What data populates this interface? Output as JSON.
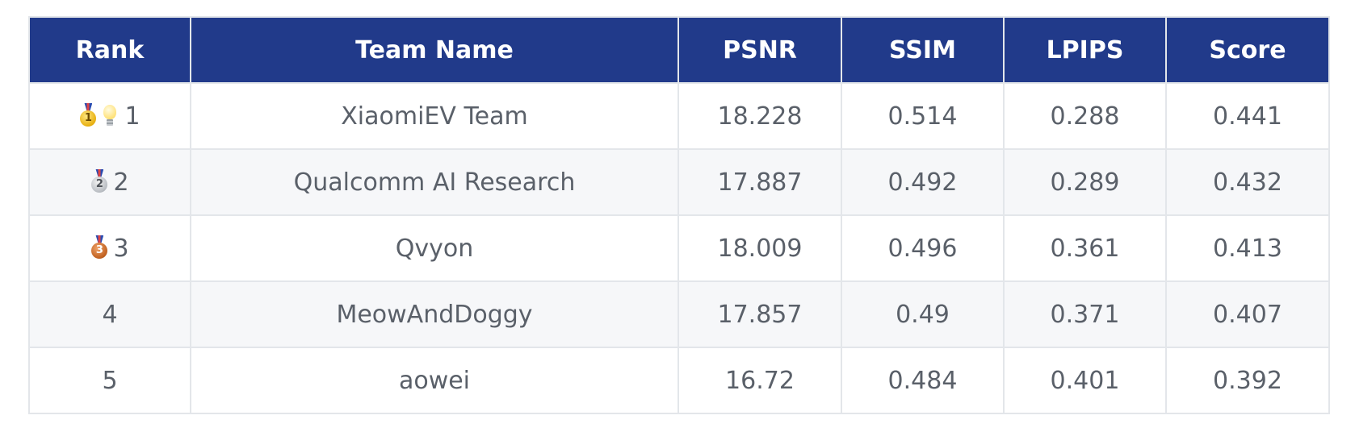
{
  "table": {
    "headers": [
      "Rank",
      "Team Name",
      "PSNR",
      "SSIM",
      "LPIPS",
      "Score"
    ],
    "rows": [
      {
        "medal": "1",
        "rank": "1",
        "team": "XiaomiEV Team",
        "psnr": "18.228",
        "ssim": "0.514",
        "lpips": "0.288",
        "score": "0.441"
      },
      {
        "medal": "2",
        "rank": "2",
        "team": "Qualcomm AI Research",
        "psnr": "17.887",
        "ssim": "0.492",
        "lpips": "0.289",
        "score": "0.432"
      },
      {
        "medal": "3",
        "rank": "3",
        "team": "Qvyon",
        "psnr": "18.009",
        "ssim": "0.496",
        "lpips": "0.361",
        "score": "0.413"
      },
      {
        "rank": "4",
        "team": "MeowAndDoggy",
        "psnr": "17.857",
        "ssim": "0.49",
        "lpips": "0.371",
        "score": "0.407"
      },
      {
        "rank": "5",
        "team": "aowei",
        "psnr": "16.72",
        "ssim": "0.484",
        "lpips": "0.401",
        "score": "0.392"
      }
    ]
  },
  "icons": {
    "gold": "gold-medal-icon",
    "silver": "silver-medal-icon",
    "bronze": "bronze-medal-icon",
    "bulb": "light-bulb-icon"
  },
  "colors": {
    "header_bg": "#213a8a",
    "header_text": "#ffffff",
    "cell_text": "#5a6069",
    "row_alt": "#f6f7f9",
    "border": "#e3e6ea"
  }
}
